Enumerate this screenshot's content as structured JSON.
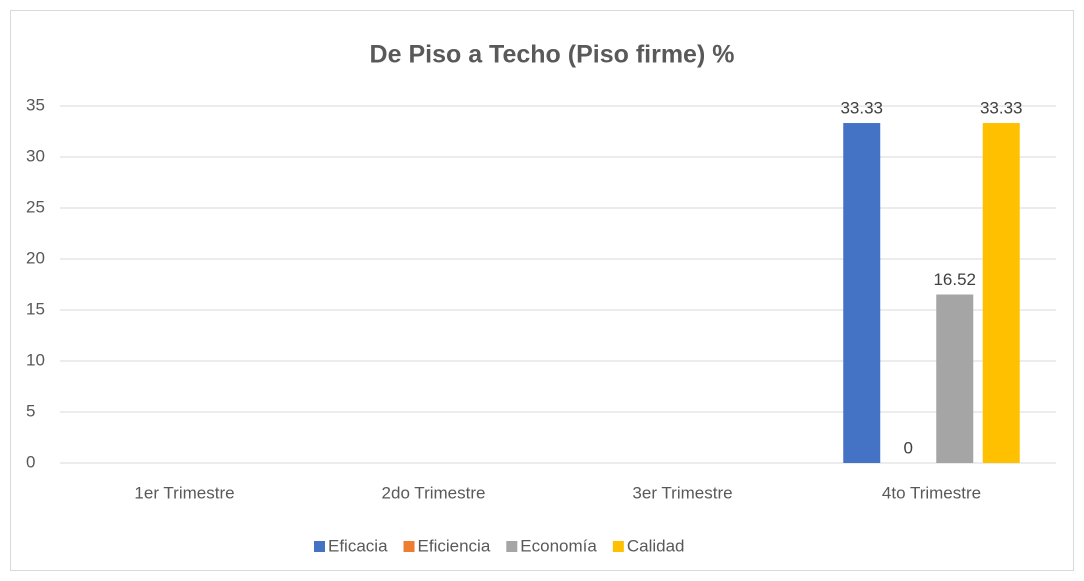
{
  "chart_data": {
    "type": "bar",
    "title": "De Piso a Techo (Piso firme) %",
    "categories": [
      "1er Trimestre",
      "2do Trimestre",
      "3er Trimestre",
      "4to Trimestre"
    ],
    "series": [
      {
        "name": "Eficacia",
        "color": "#4472c4",
        "values": [
          null,
          null,
          null,
          33.33
        ]
      },
      {
        "name": "Eficiencia",
        "color": "#ed7d31",
        "values": [
          null,
          null,
          null,
          0
        ]
      },
      {
        "name": "Economía",
        "color": "#a5a5a5",
        "values": [
          null,
          null,
          null,
          16.52
        ]
      },
      {
        "name": "Calidad",
        "color": "#ffc000",
        "values": [
          null,
          null,
          null,
          33.33
        ]
      }
    ],
    "ylim": [
      0,
      35
    ],
    "yticks": [
      0,
      5,
      10,
      15,
      20,
      25,
      30,
      35
    ],
    "grid": true,
    "legend": "bottom"
  }
}
